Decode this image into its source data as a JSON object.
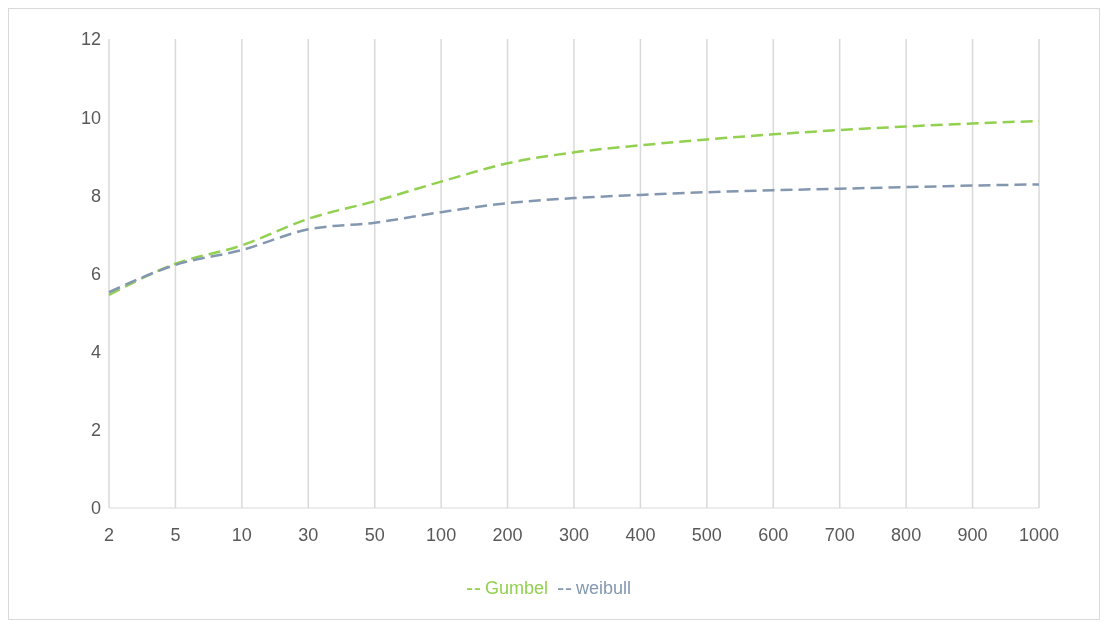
{
  "chart_data": {
    "type": "line",
    "categories": [
      "2",
      "5",
      "10",
      "30",
      "50",
      "100",
      "200",
      "300",
      "400",
      "500",
      "600",
      "700",
      "800",
      "900",
      "1000"
    ],
    "series": [
      {
        "name": "Gumbel",
        "color": "#92d050",
        "values": [
          5.45,
          6.25,
          6.72,
          7.4,
          7.85,
          8.35,
          8.82,
          9.1,
          9.28,
          9.43,
          9.56,
          9.67,
          9.76,
          9.84,
          9.9
        ]
      },
      {
        "name": "weibull",
        "color": "#8497b0",
        "values": [
          5.52,
          6.22,
          6.6,
          7.13,
          7.3,
          7.57,
          7.8,
          7.93,
          8.01,
          8.08,
          8.13,
          8.17,
          8.21,
          8.25,
          8.28
        ]
      }
    ],
    "ylim": [
      0,
      12
    ],
    "yticks": [
      0,
      2,
      4,
      6,
      8,
      10,
      12
    ],
    "grid": "x",
    "legend": "bottom",
    "marker": "none",
    "line_style": "dashed"
  }
}
